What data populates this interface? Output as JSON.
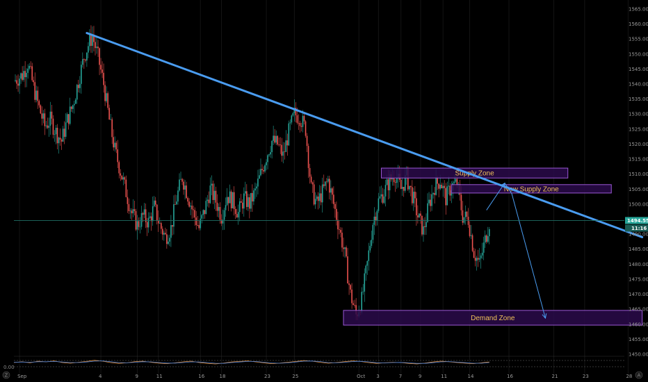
{
  "chart_data": {
    "type": "candlestick",
    "y_range": [
      1450,
      1568
    ],
    "y_ticks": [
      "1565.00",
      "1560.00",
      "1555.00",
      "1550.00",
      "1545.00",
      "1540.00",
      "1535.00",
      "1530.00",
      "1525.00",
      "1520.00",
      "1515.00",
      "1510.00",
      "1505.00",
      "1500.00",
      "1495.00",
      "1490.00",
      "1485.00",
      "1480.00",
      "1475.00",
      "1470.00",
      "1465.00",
      "1460.00",
      "1455.00",
      "1450.00"
    ],
    "x_ticks": [
      "Sep",
      "4",
      "9",
      "11",
      "16",
      "18",
      "23",
      "25",
      "Oct",
      "3",
      "7",
      "9",
      "11",
      "14",
      "16",
      "21",
      "23",
      "28"
    ],
    "x_tick_slots": [
      4,
      62,
      88,
      103,
      133,
      148,
      180,
      200,
      246,
      260,
      276,
      290,
      306,
      325,
      353,
      385,
      407,
      438
    ],
    "indicator_tick": "0.00",
    "current_price": "1494.55",
    "countdown": "11:16",
    "corner_left": "Z",
    "corner_right": "A",
    "colors": {
      "up": "#26a69a",
      "down": "#ef5350",
      "trendline": "#4a9cf0",
      "zone_fill": "#2a0a4a",
      "zone_border": "#9b59d6",
      "zone_text": "#f0c25a",
      "projection": "#4a9cf0",
      "price_line": "#1f6f66",
      "price_box": "#26a69a"
    },
    "trendline": {
      "start": {
        "slot": 52,
        "price": 1557
      },
      "end": {
        "slot": 448,
        "price": 1489
      }
    },
    "zones": [
      {
        "label": "Supply Zone",
        "slot_from": 262,
        "slot_to": 395,
        "price_top": 1512,
        "price_bottom": 1508.7
      },
      {
        "label": "New Supply Zone",
        "slot_from": 312,
        "slot_to": 426,
        "price_top": 1506.5,
        "price_bottom": 1503.7
      },
      {
        "label": "Demand Zone",
        "slot_from": 235,
        "slot_to": 448,
        "price_top": 1464.6,
        "price_bottom": 1459.7
      }
    ],
    "projection": [
      {
        "slot": 337,
        "price": 1498
      },
      {
        "slot": 350,
        "price": 1507
      },
      {
        "slot": 355,
        "price": 1503.5
      },
      {
        "slot": 379,
        "price": 1462
      }
    ],
    "close_path": [
      [
        0,
        1541
      ],
      [
        6,
        1543
      ],
      [
        10,
        1547
      ],
      [
        14,
        1539
      ],
      [
        18,
        1532
      ],
      [
        22,
        1526
      ],
      [
        26,
        1528
      ],
      [
        30,
        1524
      ],
      [
        34,
        1521
      ],
      [
        38,
        1528
      ],
      [
        42,
        1533
      ],
      [
        46,
        1541
      ],
      [
        50,
        1549
      ],
      [
        53,
        1553
      ],
      [
        56,
        1556
      ],
      [
        60,
        1549
      ],
      [
        64,
        1540
      ],
      [
        68,
        1528
      ],
      [
        72,
        1518
      ],
      [
        76,
        1511
      ],
      [
        80,
        1504
      ],
      [
        84,
        1497
      ],
      [
        88,
        1493
      ],
      [
        92,
        1496
      ],
      [
        96,
        1494
      ],
      [
        100,
        1499
      ],
      [
        104,
        1493
      ],
      [
        108,
        1489
      ],
      [
        112,
        1492
      ],
      [
        116,
        1502
      ],
      [
        120,
        1509
      ],
      [
        124,
        1503
      ],
      [
        128,
        1497
      ],
      [
        132,
        1492
      ],
      [
        136,
        1498
      ],
      [
        140,
        1505
      ],
      [
        144,
        1501
      ],
      [
        148,
        1496
      ],
      [
        152,
        1503
      ],
      [
        156,
        1501
      ],
      [
        160,
        1497
      ],
      [
        164,
        1502
      ],
      [
        168,
        1500
      ],
      [
        172,
        1504
      ],
      [
        176,
        1510
      ],
      [
        180,
        1516
      ],
      [
        184,
        1521
      ],
      [
        188,
        1520
      ],
      [
        192,
        1516
      ],
      [
        196,
        1524
      ],
      [
        200,
        1530
      ],
      [
        204,
        1529
      ],
      [
        208,
        1525
      ],
      [
        212,
        1505
      ],
      [
        216,
        1500
      ],
      [
        220,
        1504
      ],
      [
        224,
        1508
      ],
      [
        228,
        1500
      ],
      [
        232,
        1492
      ],
      [
        236,
        1483
      ],
      [
        240,
        1470
      ],
      [
        244,
        1463
      ],
      [
        248,
        1468
      ],
      [
        252,
        1480
      ],
      [
        256,
        1494
      ],
      [
        260,
        1501
      ],
      [
        264,
        1504
      ],
      [
        268,
        1508
      ],
      [
        272,
        1510
      ],
      [
        276,
        1505
      ],
      [
        280,
        1509
      ],
      [
        284,
        1503
      ],
      [
        288,
        1496
      ],
      [
        292,
        1491
      ],
      [
        296,
        1500
      ],
      [
        300,
        1506
      ],
      [
        304,
        1508
      ],
      [
        308,
        1502
      ],
      [
        312,
        1506
      ],
      [
        316,
        1507
      ],
      [
        320,
        1496
      ],
      [
        324,
        1495
      ],
      [
        328,
        1484
      ],
      [
        332,
        1480
      ],
      [
        336,
        1488
      ],
      [
        339,
        1494
      ]
    ],
    "indicator": {
      "stoch_k": [
        50,
        56,
        48,
        60,
        55,
        62,
        50,
        45,
        52,
        58,
        66,
        60,
        50,
        44,
        48,
        56,
        60,
        52,
        46,
        42,
        48,
        55,
        60,
        50,
        44,
        40,
        46,
        54,
        58,
        62,
        55,
        48,
        42,
        46,
        52,
        58,
        64,
        60,
        52,
        45,
        50,
        56,
        62,
        58,
        50,
        44,
        48,
        52,
        50,
        44,
        40,
        46,
        54,
        60,
        56,
        50,
        46,
        42,
        48,
        54
      ],
      "stoch_d": [
        52,
        54,
        52,
        56,
        56,
        58,
        54,
        50,
        50,
        54,
        60,
        62,
        56,
        50,
        48,
        52,
        56,
        55,
        50,
        46,
        46,
        50,
        55,
        54,
        50,
        45,
        44,
        50,
        54,
        58,
        58,
        52,
        47,
        45,
        48,
        54,
        60,
        61,
        57,
        50,
        48,
        52,
        57,
        59,
        55,
        49,
        47,
        50,
        51,
        48,
        44,
        44,
        49,
        55,
        57,
        53,
        49,
        45,
        45,
        50
      ]
    }
  }
}
